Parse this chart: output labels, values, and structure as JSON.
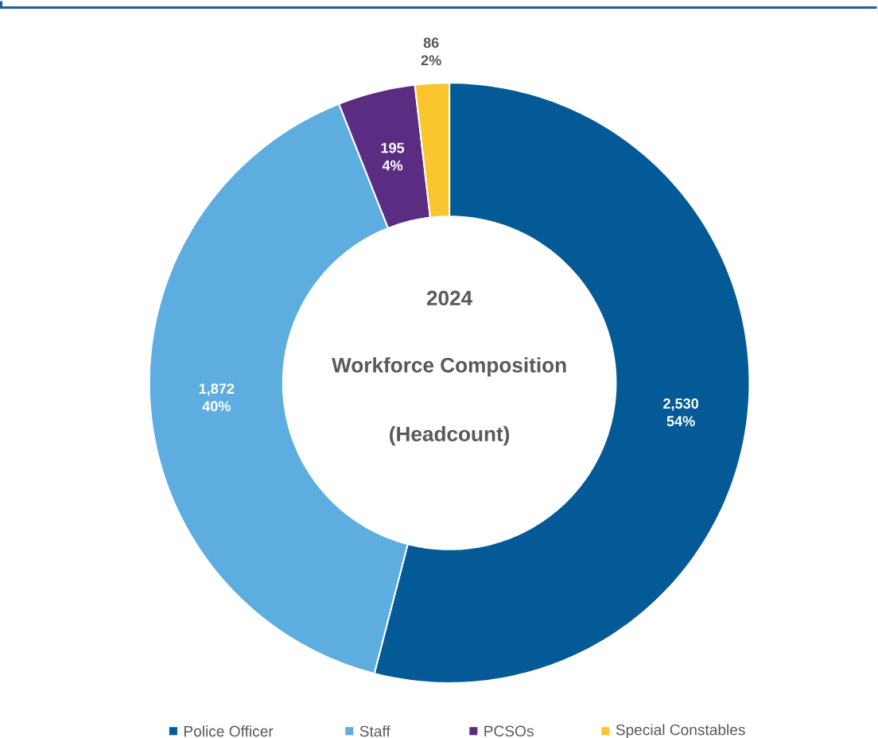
{
  "chart_data": {
    "type": "donut",
    "title": "2024",
    "subtitle": "Workforce Composition",
    "annotations": [
      "(Headcount)"
    ],
    "categories": [
      "Police Officer",
      "Staff",
      "PCSOs",
      "Special Constables"
    ],
    "values": [
      2530,
      1872,
      195,
      86
    ],
    "colors": [
      "#045a96",
      "#5dade0",
      "#5a2d82",
      "#fbc52d"
    ],
    "value_labels": [
      "2,530 54%",
      "1,872 40%",
      "195 4%",
      "86 2%"
    ],
    "legend": "bottom"
  }
}
